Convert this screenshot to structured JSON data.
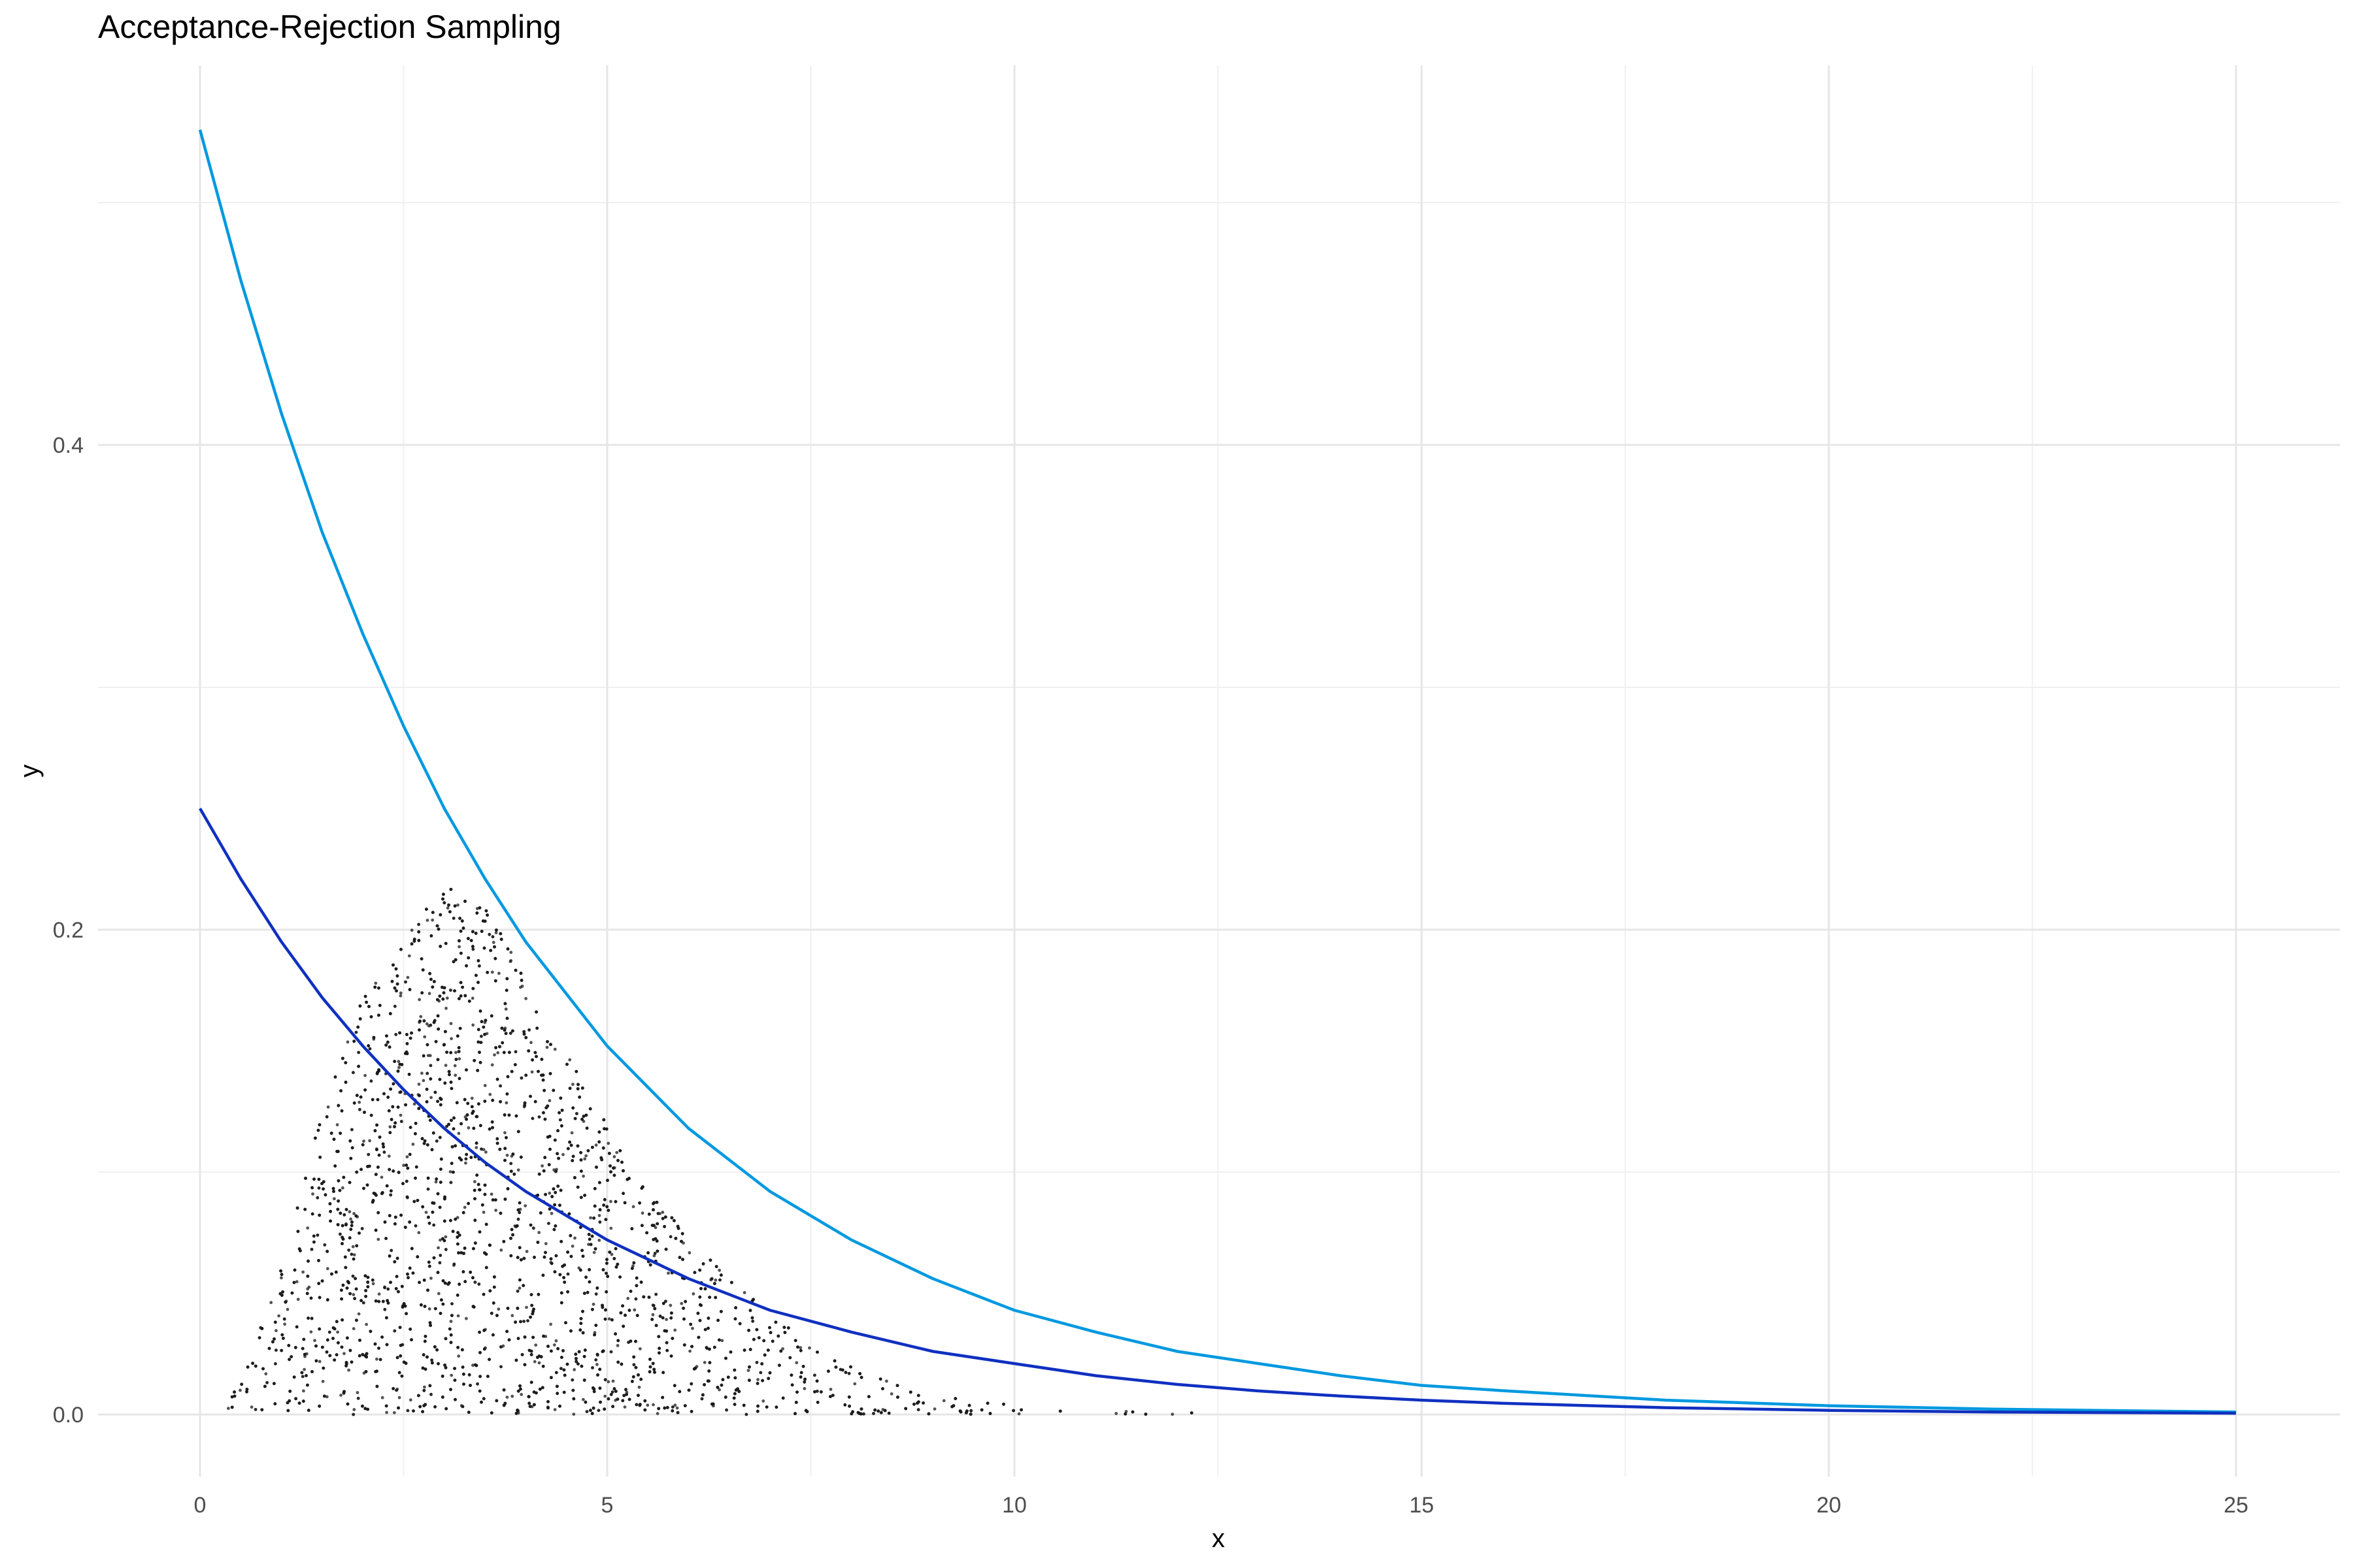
{
  "chart_data": {
    "type": "scatter",
    "title": "Acceptance-Rejection Sampling",
    "xlabel": "x",
    "ylabel": "y",
    "xlim": [
      0,
      25
    ],
    "ylim": [
      0,
      0.53
    ],
    "grid": true,
    "legend": "none",
    "x_ticks": [
      {
        "value": 0,
        "label": "0"
      },
      {
        "value": 5,
        "label": "5"
      },
      {
        "value": 10,
        "label": "10"
      },
      {
        "value": 15,
        "label": "15"
      },
      {
        "value": 20,
        "label": "20"
      },
      {
        "value": 25,
        "label": "25"
      }
    ],
    "y_ticks": [
      {
        "value": 0,
        "label": "0.0"
      },
      {
        "value": 0.2,
        "label": "0.2"
      },
      {
        "value": 0.4,
        "label": "0.4"
      }
    ],
    "series": [
      {
        "type": "line",
        "color": "#0099E0",
        "x": [
          0,
          0.5,
          1,
          1.5,
          2,
          2.5,
          3,
          3.5,
          4,
          5,
          6,
          7,
          8,
          9,
          10,
          11,
          12,
          13,
          14,
          15,
          16,
          18,
          20,
          22,
          25
        ],
        "y": [
          0.53,
          0.468,
          0.413,
          0.364,
          0.322,
          0.284,
          0.25,
          0.221,
          0.195,
          0.152,
          0.118,
          0.092,
          0.072,
          0.056,
          0.043,
          0.034,
          0.026,
          0.021,
          0.016,
          0.012,
          0.0098,
          0.0059,
          0.0036,
          0.0022,
          0.001
        ]
      },
      {
        "type": "line",
        "color": "#1030C0",
        "x": [
          0,
          0.5,
          1,
          1.5,
          2,
          2.5,
          3,
          3.5,
          4,
          5,
          6,
          7,
          8,
          9,
          10,
          11,
          12,
          13,
          14,
          15,
          16,
          18,
          20,
          22,
          25
        ],
        "y": [
          0.25,
          0.221,
          0.195,
          0.172,
          0.152,
          0.134,
          0.118,
          0.104,
          0.092,
          0.072,
          0.056,
          0.043,
          0.034,
          0.026,
          0.021,
          0.016,
          0.0124,
          0.0097,
          0.0076,
          0.0059,
          0.0046,
          0.0028,
          0.0017,
          0.001,
          0.0005
        ]
      },
      {
        "type": "scatter",
        "color": "#1a1a1a",
        "point_count": 4500,
        "x_range": [
          0.2,
          13.8
        ],
        "envelope": {
          "x": [
            0.2,
            0.5,
            1,
            1.5,
            2,
            2.5,
            3,
            3.5,
            4,
            4.5,
            5,
            5.5,
            6,
            6.5,
            7,
            7.5,
            8,
            8.5,
            9,
            9.5,
            10,
            10.5,
            11,
            11.5,
            12,
            12.5,
            13,
            13.8
          ],
          "y": [
            0.002,
            0.015,
            0.06,
            0.125,
            0.175,
            0.205,
            0.218,
            0.21,
            0.18,
            0.15,
            0.12,
            0.093,
            0.073,
            0.057,
            0.042,
            0.029,
            0.02,
            0.013,
            0.009,
            0.006,
            0.004,
            0.003,
            0.002,
            0.0015,
            0.001,
            0.0008,
            0.0005,
            0.0003
          ]
        }
      }
    ]
  }
}
